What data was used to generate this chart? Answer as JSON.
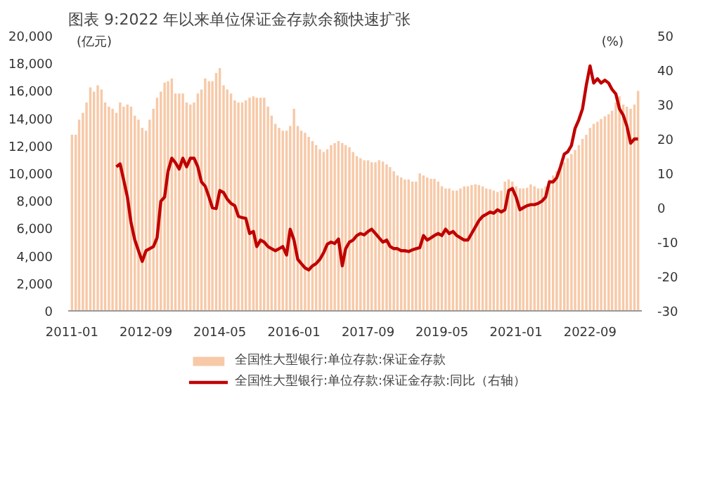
{
  "chart_data": {
    "type": "bar",
    "title": "图表 9:2022 年以来单位保证金存款余额快速扩张",
    "ylabel": "(亿元)",
    "y2label": "(%)",
    "x": [
      "2011-01",
      "2011-02",
      "2011-03",
      "2011-04",
      "2011-05",
      "2011-06",
      "2011-07",
      "2011-08",
      "2011-09",
      "2011-10",
      "2011-11",
      "2011-12",
      "2012-01",
      "2012-02",
      "2012-03",
      "2012-04",
      "2012-05",
      "2012-06",
      "2012-07",
      "2012-08",
      "2012-09",
      "2012-10",
      "2012-11",
      "2012-12",
      "2013-01",
      "2013-02",
      "2013-03",
      "2013-04",
      "2013-05",
      "2013-06",
      "2013-07",
      "2013-08",
      "2013-09",
      "2013-10",
      "2013-11",
      "2013-12",
      "2014-01",
      "2014-02",
      "2014-03",
      "2014-04",
      "2014-05",
      "2014-06",
      "2014-07",
      "2014-08",
      "2014-09",
      "2014-10",
      "2014-11",
      "2014-12",
      "2015-01",
      "2015-02",
      "2015-03",
      "2015-04",
      "2015-05",
      "2015-06",
      "2015-07",
      "2015-08",
      "2015-09",
      "2015-10",
      "2015-11",
      "2015-12",
      "2016-01",
      "2016-02",
      "2016-03",
      "2016-04",
      "2016-05",
      "2016-06",
      "2016-07",
      "2016-08",
      "2016-09",
      "2016-10",
      "2016-11",
      "2016-12",
      "2017-01",
      "2017-02",
      "2017-03",
      "2017-04",
      "2017-05",
      "2017-06",
      "2017-07",
      "2017-08",
      "2017-09",
      "2017-10",
      "2017-11",
      "2017-12",
      "2018-01",
      "2018-02",
      "2018-03",
      "2018-04",
      "2018-05",
      "2018-06",
      "2018-07",
      "2018-08",
      "2018-09",
      "2018-10",
      "2018-11",
      "2018-12",
      "2019-01",
      "2019-02",
      "2019-03",
      "2019-04",
      "2019-05",
      "2019-06",
      "2019-07",
      "2019-08",
      "2019-09",
      "2019-10",
      "2019-11",
      "2019-12",
      "2020-01",
      "2020-02",
      "2020-03",
      "2020-04",
      "2020-05",
      "2020-06",
      "2020-07",
      "2020-08",
      "2020-09",
      "2020-10",
      "2020-11",
      "2020-12",
      "2021-01",
      "2021-02",
      "2021-03",
      "2021-04",
      "2021-05",
      "2021-06",
      "2021-07",
      "2021-08",
      "2021-09",
      "2021-10",
      "2021-11",
      "2021-12",
      "2022-01",
      "2022-02",
      "2022-03",
      "2022-04",
      "2022-05",
      "2022-06",
      "2022-07",
      "2022-08",
      "2022-09",
      "2022-10",
      "2022-11",
      "2022-12",
      "2023-01",
      "2023-02",
      "2023-03",
      "2023-04",
      "2023-05",
      "2023-06",
      "2023-07",
      "2023-08",
      "2023-09",
      "2023-10"
    ],
    "series": [
      {
        "name": "全国性大型银行:单位存款:保证金存款",
        "color": "#f7c9a8",
        "values": [
          12800,
          12800,
          13900,
          14400,
          15150,
          16250,
          15950,
          16400,
          16100,
          15150,
          14850,
          14700,
          14400,
          15150,
          14850,
          15000,
          14850,
          14200,
          13900,
          13300,
          13100,
          13900,
          14700,
          15500,
          15950,
          16600,
          16700,
          16900,
          15800,
          15800,
          15800,
          15150,
          15000,
          15150,
          15800,
          16100,
          16900,
          16700,
          16700,
          17300,
          17650,
          16400,
          16100,
          15800,
          15300,
          15150,
          15150,
          15300,
          15500,
          15600,
          15500,
          15500,
          15500,
          14850,
          14200,
          13600,
          13300,
          13100,
          13100,
          13450,
          14700,
          13450,
          13100,
          12950,
          12650,
          12350,
          12050,
          11750,
          11550,
          11750,
          12050,
          12200,
          12350,
          12200,
          12050,
          11900,
          11550,
          11250,
          11100,
          10950,
          10950,
          10800,
          10800,
          10950,
          10850,
          10650,
          10450,
          10150,
          9850,
          9700,
          9550,
          9550,
          9400,
          9400,
          10000,
          9850,
          9700,
          9600,
          9600,
          9400,
          9050,
          8900,
          8900,
          8750,
          8750,
          8900,
          9050,
          9050,
          9150,
          9200,
          9150,
          9050,
          8900,
          8850,
          8750,
          8650,
          8750,
          9400,
          9550,
          9400,
          9050,
          8900,
          8900,
          8950,
          9200,
          9050,
          8900,
          8900,
          9050,
          9550,
          9850,
          10150,
          10450,
          10800,
          11100,
          11400,
          11700,
          12050,
          12500,
          12800,
          13300,
          13600,
          13750,
          13950,
          14150,
          14300,
          14550,
          15150,
          15600,
          15000,
          14850,
          14700,
          15000,
          16000
        ]
      },
      {
        "name": "全国性大型银行:单位存款:保证金存款:同比（右轴）",
        "type": "line",
        "axis": "y2",
        "color": "#c00000",
        "values": [
          null,
          null,
          null,
          null,
          null,
          null,
          null,
          null,
          null,
          null,
          null,
          null,
          11.9,
          12.75,
          8.1,
          3.1,
          -4.4,
          -9.4,
          -12.5,
          -15.6,
          -12.5,
          -11.9,
          -11.3,
          -8.75,
          1.9,
          3.1,
          10.6,
          14.4,
          13.1,
          11.25,
          14.4,
          11.9,
          14.4,
          14.4,
          11.9,
          7.5,
          6.25,
          3.1,
          0,
          -0.25,
          5,
          4.4,
          2.5,
          1.25,
          0.6,
          -2.5,
          -2.9,
          -3.1,
          -7.5,
          -6.9,
          -11.3,
          -9.4,
          -10,
          -11.3,
          -11.9,
          -12.5,
          -11.9,
          -11.3,
          -13.75,
          -6.25,
          -9.4,
          -15,
          -16.25,
          -17.5,
          -18.1,
          -16.9,
          -16.25,
          -15,
          -13.1,
          -10.6,
          -10,
          -10.4,
          -9.1,
          -16.9,
          -11.9,
          -10,
          -9.4,
          -8.1,
          -7.5,
          -7.9,
          -6.9,
          -6.25,
          -7.5,
          -8.75,
          -10,
          -9.4,
          -11.25,
          -11.9,
          -11.9,
          -12.5,
          -12.5,
          -12.75,
          -12.25,
          -11.9,
          -11.6,
          -8.1,
          -9.4,
          -8.75,
          -8.1,
          -7.5,
          -8.1,
          -6.25,
          -7.5,
          -6.9,
          -8.1,
          -8.75,
          -9.4,
          -9.4,
          -7.5,
          -5.6,
          -3.75,
          -2.5,
          -1.9,
          -1.25,
          -1.6,
          -0.6,
          -1.25,
          -0.6,
          5,
          5.6,
          3.1,
          -0.6,
          0,
          0.6,
          0.9,
          0.9,
          1.25,
          1.9,
          3.1,
          7.5,
          7.5,
          8.75,
          11.9,
          15.6,
          16.25,
          18.1,
          23.1,
          25.6,
          28.75,
          35.6,
          41.25,
          36.25,
          37.5,
          36.25,
          37.1,
          36.25,
          34.4,
          33.1,
          28.75,
          26.9,
          23.75,
          18.75,
          20,
          20
        ]
      }
    ],
    "xlim": [
      "2010-12",
      "2023-11"
    ],
    "xticks": [
      "2011-01",
      "2012-09",
      "2014-05",
      "2016-01",
      "2017-09",
      "2019-05",
      "2021-01",
      "2022-09"
    ],
    "ylim": [
      0,
      20000
    ],
    "yticks": [
      0,
      {
        "value": 2000,
        "label": "2,000"
      },
      {
        "value": 4000,
        "label": "4,000"
      },
      {
        "value": 6000,
        "label": "6,000"
      },
      {
        "value": 8000,
        "label": "8,000"
      },
      {
        "value": 10000,
        "label": "10,000"
      },
      {
        "value": 12000,
        "label": "12,000"
      },
      {
        "value": 14000,
        "label": "14,000"
      },
      {
        "value": 16000,
        "label": "16,000"
      },
      {
        "value": 18000,
        "label": "18,000"
      },
      {
        "value": 20000,
        "label": "20,000"
      }
    ],
    "y2lim": [
      -30,
      50
    ],
    "y2ticks": [
      -30,
      -20,
      -10,
      0,
      10,
      20,
      30,
      40,
      50
    ],
    "grid": false,
    "legend": "bottom"
  }
}
